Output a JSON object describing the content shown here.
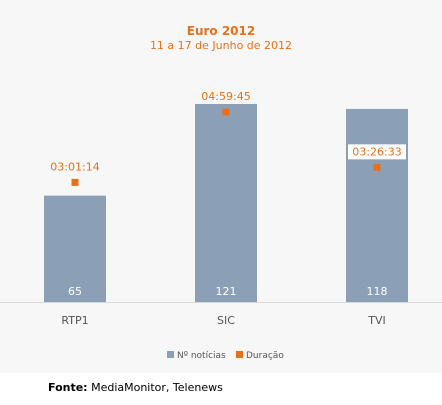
{
  "title": "Euro 2012",
  "subtitle": "11 a 17 de Junho de 2012",
  "source": {
    "label": "Fonte:",
    "text": "MediaMonitor, Telenews"
  },
  "colors": {
    "bar": "#8ba0b7",
    "marker": "#e8701a",
    "title": "#e8701a"
  },
  "chart_data": {
    "type": "bar",
    "categories": [
      "RTP1",
      "SIC",
      "TVI"
    ],
    "series": [
      {
        "name": "Nº notícias",
        "type": "bar",
        "values": [
          65,
          121,
          118
        ],
        "value_labels": [
          "65",
          "121",
          "118"
        ]
      },
      {
        "name": "Duração",
        "type": "scatter",
        "values": [
          "03:01:14",
          "04:59:45",
          "03:26:33"
        ]
      }
    ],
    "title": "Euro 2012",
    "subtitle": "11 a 17 de Junho de 2012",
    "xlabel": "",
    "ylabel": "",
    "ylim": [
      0,
      121
    ],
    "grid": false,
    "legend": "bottom"
  }
}
